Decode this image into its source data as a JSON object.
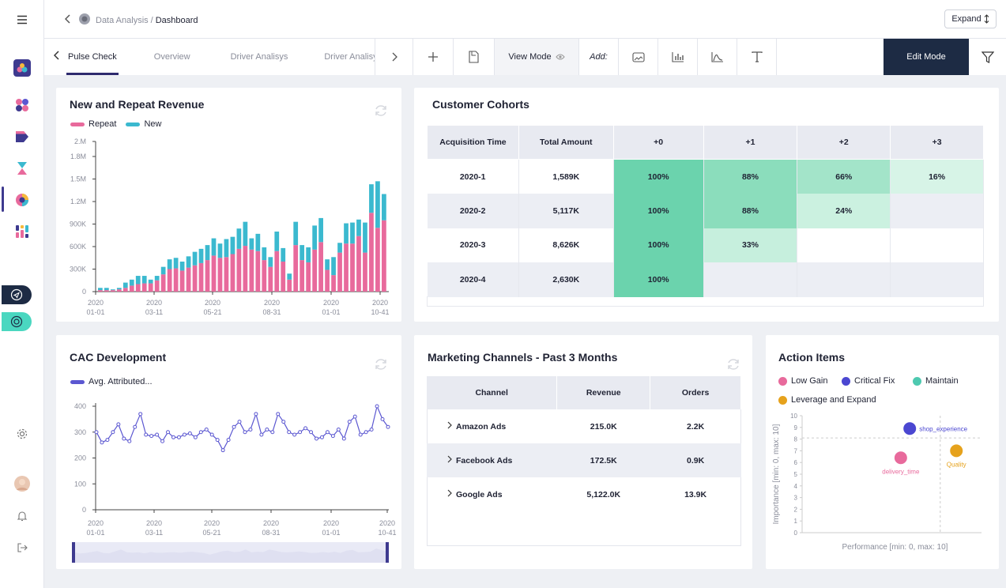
{
  "breadcrumb": {
    "parent": "Data Analysis",
    "separator": "/",
    "current": "Dashboard"
  },
  "expand_label": "Expand",
  "tabs": [
    "Pulse Check",
    "Overview",
    "Driver Analisys",
    "Driver Analisys"
  ],
  "toolbar": {
    "view_mode": "View Mode",
    "add_label": "Add:",
    "edit_mode": "Edit Mode"
  },
  "revenue": {
    "title": "New and Repeat Revenue",
    "legend": {
      "repeat": "Repeat",
      "new": "New"
    },
    "colors": {
      "repeat": "#e86a9c",
      "new": "#3bb9cf"
    },
    "y_ticks": [
      "0",
      "300K",
      "600K",
      "900K",
      "1.2M",
      "1.5M",
      "1.8M",
      "2.M"
    ],
    "x_ticks": [
      [
        "2020",
        "01-01"
      ],
      [
        "2020",
        "03-11"
      ],
      [
        "2020",
        "05-21"
      ],
      [
        "2020",
        "08-31"
      ],
      [
        "2020",
        "01-01"
      ],
      [
        "2020",
        "10-41"
      ]
    ]
  },
  "cohorts": {
    "title": "Customer Cohorts",
    "headers": [
      "Acquisition Time",
      "Total Amount",
      "+0",
      "+1",
      "+2",
      "+3"
    ],
    "rows": [
      {
        "time": "2020-1",
        "amount": "1,589K",
        "cells": [
          "100%",
          "88%",
          "66%",
          "16%"
        ]
      },
      {
        "time": "2020-2",
        "amount": "5,117K",
        "cells": [
          "100%",
          "88%",
          "24%",
          ""
        ]
      },
      {
        "time": "2020-3",
        "amount": "8,626K",
        "cells": [
          "100%",
          "33%",
          "",
          ""
        ]
      },
      {
        "time": "2020-4",
        "amount": "2,630K",
        "cells": [
          "100%",
          "",
          "",
          ""
        ]
      }
    ]
  },
  "cac": {
    "title": "CAC Development",
    "legend": "Avg. Attributed...",
    "color": "#5b57d1",
    "y_ticks": [
      "0",
      "100",
      "200",
      "300",
      "400"
    ],
    "x_ticks": [
      [
        "2020",
        "01-01"
      ],
      [
        "2020",
        "03-11"
      ],
      [
        "2020",
        "05-21"
      ],
      [
        "2020",
        "08-31"
      ],
      [
        "2020",
        "01-01"
      ],
      [
        "2020",
        "10-41"
      ]
    ]
  },
  "marketing": {
    "title": "Marketing Channels - Past 3 Months",
    "headers": [
      "Channel",
      "Revenue",
      "Orders"
    ],
    "rows": [
      {
        "channel": "Amazon Ads",
        "revenue": "215.0K",
        "orders": "2.2K"
      },
      {
        "channel": "Facebook Ads",
        "revenue": "172.5K",
        "orders": "0.9K"
      },
      {
        "channel": "Google Ads",
        "revenue": "5,122.0K",
        "orders": "13.9K"
      }
    ]
  },
  "actions": {
    "title": "Action Items",
    "legend": [
      {
        "label": "Low Gain",
        "color": "#e86a9c"
      },
      {
        "label": "Critical Fix",
        "color": "#4b47d1"
      },
      {
        "label": "Maintain",
        "color": "#4ec9b0"
      },
      {
        "label": "Leverage and Expand",
        "color": "#e6a21c"
      }
    ],
    "x_label": "Performance [min: 0, max: 10]",
    "y_label": "Importance [min: 0, max: 10]",
    "y_ticks": [
      "0",
      "1",
      "2",
      "3",
      "4",
      "5",
      "6",
      "7",
      "8",
      "9",
      "10"
    ]
  },
  "chart_data": [
    {
      "type": "bar",
      "title": "New and Repeat Revenue",
      "stacked": true,
      "ylim": [
        0,
        2000000
      ],
      "series": [
        {
          "name": "Repeat",
          "values": [
            20000,
            20000,
            20000,
            30000,
            50000,
            80000,
            100000,
            110000,
            110000,
            150000,
            230000,
            300000,
            310000,
            280000,
            320000,
            350000,
            380000,
            420000,
            480000,
            450000,
            460000,
            500000,
            570000,
            610000,
            560000,
            540000,
            420000,
            330000,
            540000,
            400000,
            160000,
            620000,
            420000,
            390000,
            560000,
            660000,
            290000,
            220000,
            520000,
            640000,
            640000,
            740000,
            520000,
            1050000,
            850000,
            950000
          ]
        },
        {
          "name": "New",
          "values": [
            30000,
            30000,
            10000,
            20000,
            70000,
            80000,
            110000,
            100000,
            50000,
            60000,
            100000,
            130000,
            140000,
            120000,
            150000,
            180000,
            190000,
            200000,
            230000,
            190000,
            240000,
            230000,
            270000,
            320000,
            150000,
            230000,
            170000,
            130000,
            260000,
            180000,
            80000,
            310000,
            200000,
            200000,
            320000,
            320000,
            140000,
            240000,
            130000,
            270000,
            280000,
            220000,
            400000,
            380000,
            620000,
            350000
          ]
        }
      ]
    },
    {
      "type": "line",
      "title": "CAC Development",
      "ylim": [
        0,
        400
      ],
      "series": [
        {
          "name": "Avg. Attributed...",
          "values": [
            300,
            260,
            270,
            300,
            330,
            275,
            265,
            320,
            370,
            290,
            285,
            290,
            265,
            300,
            280,
            280,
            290,
            295,
            280,
            300,
            310,
            290,
            270,
            230,
            270,
            320,
            340,
            300,
            310,
            370,
            290,
            310,
            300,
            370,
            340,
            300,
            290,
            300,
            315,
            300,
            275,
            280,
            300,
            285,
            310,
            275,
            340,
            360,
            290,
            300,
            310,
            400,
            350,
            320
          ]
        }
      ]
    },
    {
      "type": "scatter",
      "title": "Action Items",
      "xlabel": "Performance [min: 0, max: 10]",
      "ylabel": "Importance [min: 0, max: 10]",
      "xlim": [
        0,
        10
      ],
      "ylim": [
        0,
        10
      ],
      "points": [
        {
          "label": "shop_experience",
          "x": 6.0,
          "y": 8.9,
          "category": "Critical Fix",
          "color": "#4b47d1"
        },
        {
          "label": "delivery_time",
          "x": 5.5,
          "y": 6.4,
          "category": "Low Gain",
          "color": "#e86a9c"
        },
        {
          "label": "Quality",
          "x": 8.6,
          "y": 7.0,
          "category": "Leverage and Expand",
          "color": "#e6a21c"
        }
      ],
      "threshold_x": 7.7,
      "threshold_y": 8.1
    }
  ]
}
